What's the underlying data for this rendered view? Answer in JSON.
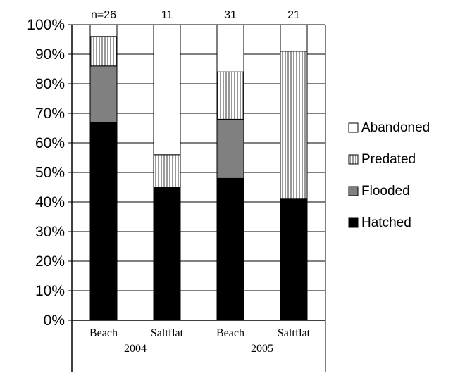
{
  "chart_data": {
    "type": "bar",
    "stacked": true,
    "percent": true,
    "categories": [
      "Beach",
      "Saltflat",
      "Beach",
      "Saltflat"
    ],
    "groups": [
      {
        "label": "2004",
        "categories": [
          "Beach",
          "Saltflat"
        ]
      },
      {
        "label": "2005",
        "categories": [
          "Beach",
          "Saltflat"
        ]
      }
    ],
    "sample_sizes": [
      "n=26",
      "11",
      "31",
      "21"
    ],
    "series": [
      {
        "name": "Hatched",
        "values": [
          67,
          45,
          48,
          41
        ],
        "color": "#000000",
        "pattern": "solid"
      },
      {
        "name": "Flooded",
        "values": [
          19,
          0,
          20,
          0
        ],
        "color": "#808080",
        "pattern": "solid"
      },
      {
        "name": "Predated",
        "values": [
          10,
          11,
          16,
          50
        ],
        "color": "#ffffff",
        "pattern": "vertical-lines"
      },
      {
        "name": "Abandoned",
        "values": [
          4,
          44,
          16,
          9
        ],
        "color": "#ffffff",
        "pattern": "blank"
      }
    ],
    "ylim": [
      0,
      100
    ],
    "yticks": [
      "0%",
      "10%",
      "20%",
      "30%",
      "40%",
      "50%",
      "60%",
      "70%",
      "80%",
      "90%",
      "100%"
    ],
    "grid": true,
    "legend_position": "right",
    "legend_order": [
      "Abandoned",
      "Predated",
      "Flooded",
      "Hatched"
    ],
    "title": "",
    "xlabel": "",
    "ylabel": ""
  }
}
